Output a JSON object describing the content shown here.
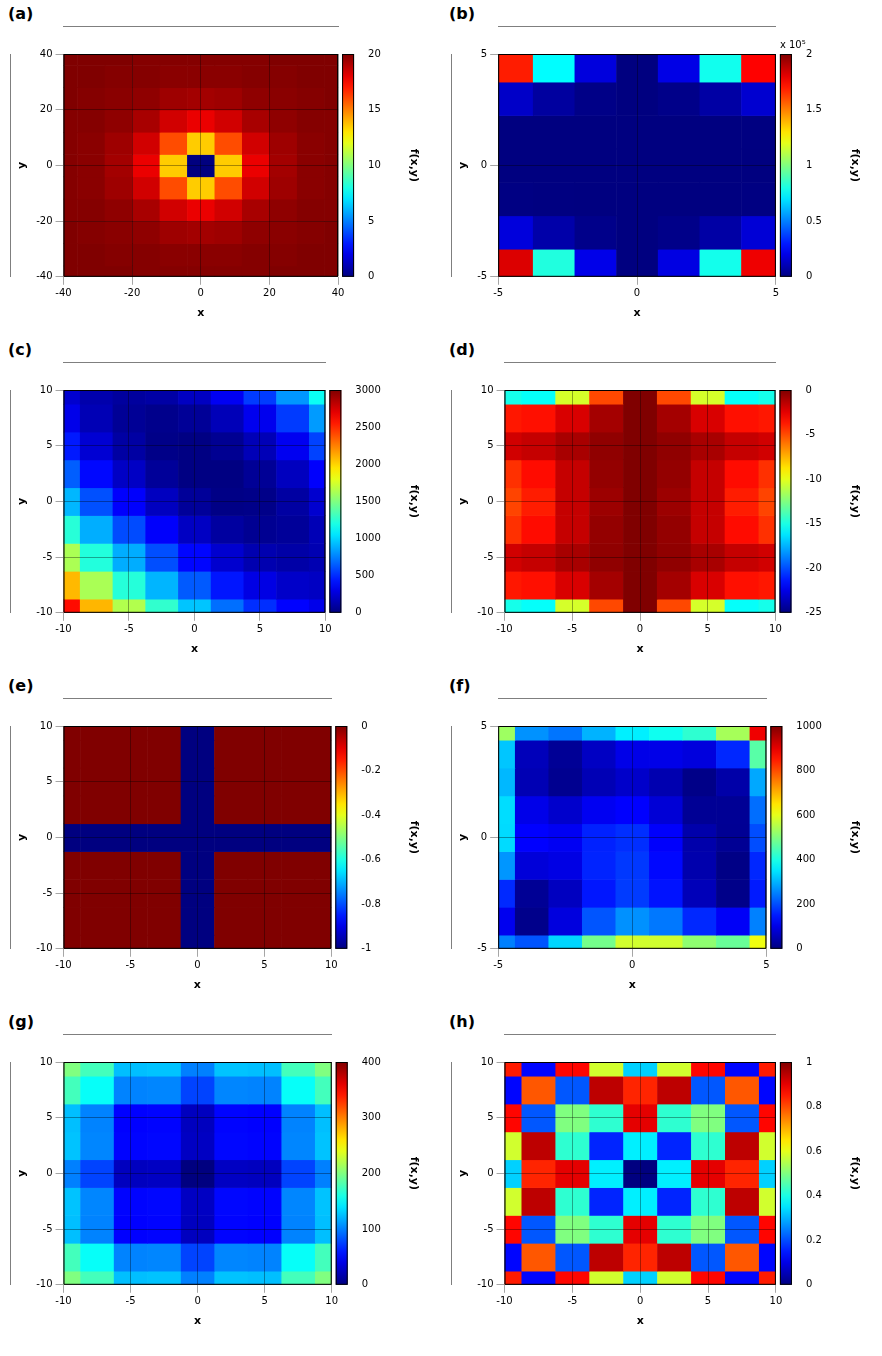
{
  "chart_data": [
    {
      "type": "heatmap",
      "title": "(a)",
      "x_label": "x",
      "y_label": "y",
      "grid": true,
      "xlim": [
        -40,
        40
      ],
      "xticks": [
        -40,
        -20,
        0,
        20,
        40
      ],
      "ylim": [
        -40,
        40
      ],
      "yticks": [
        -40,
        -20,
        0,
        20,
        40
      ],
      "x": [
        -40,
        -32,
        -24,
        -16,
        -8,
        0,
        8,
        16,
        24,
        32,
        40
      ],
      "y": [
        -40,
        -32,
        -24,
        -16,
        -8,
        0,
        8,
        16,
        24,
        32,
        40
      ],
      "cells": [
        [
          20,
          20,
          20,
          19.9,
          19.9,
          19.9,
          19.9,
          19.9,
          20,
          20,
          20
        ],
        [
          20,
          20,
          19.9,
          19.9,
          19.8,
          19.8,
          19.8,
          19.9,
          19.9,
          20,
          20
        ],
        [
          20,
          19.9,
          19.8,
          19.7,
          19.4,
          19.3,
          19.4,
          19.7,
          19.8,
          19.9,
          20
        ],
        [
          19.9,
          19.9,
          19.7,
          19.2,
          18.4,
          17.9,
          18.4,
          19.2,
          19.7,
          19.9,
          19.9
        ],
        [
          19.9,
          19.8,
          19.4,
          18.4,
          16,
          13.5,
          16,
          18.4,
          19.4,
          19.8,
          19.9
        ],
        [
          19.9,
          19.8,
          19.3,
          17.9,
          13.5,
          0,
          13.5,
          17.9,
          19.3,
          19.8,
          19.9
        ],
        [
          19.9,
          19.8,
          19.4,
          18.4,
          16,
          13.5,
          16,
          18.4,
          19.4,
          19.8,
          19.9
        ],
        [
          19.9,
          19.9,
          19.7,
          19.2,
          18.4,
          17.9,
          18.4,
          19.2,
          19.7,
          19.9,
          19.9
        ],
        [
          20,
          19.9,
          19.8,
          19.7,
          19.4,
          19.3,
          19.4,
          19.7,
          19.8,
          19.9,
          20
        ],
        [
          20,
          20,
          19.9,
          19.9,
          19.8,
          19.8,
          19.8,
          19.9,
          19.9,
          20,
          20
        ],
        [
          20,
          20,
          20,
          19.9,
          19.9,
          19.9,
          19.9,
          19.9,
          20,
          20,
          20
        ]
      ],
      "colorbar": {
        "label": "f(x,y)",
        "lim": [
          0,
          20
        ],
        "ticks": [
          0,
          5,
          10,
          15,
          20
        ]
      }
    },
    {
      "type": "heatmap",
      "title": "(b)",
      "x_label": "x",
      "y_label": "y",
      "grid": true,
      "xlim": [
        -5,
        5
      ],
      "xticks": [
        -5,
        0,
        5
      ],
      "ylim": [
        -5,
        5
      ],
      "yticks": [
        -5,
        0,
        5
      ],
      "x": [
        -4.5,
        -3,
        -1.5,
        0,
        1.5,
        3,
        4.5
      ],
      "y": [
        -4.5,
        -3,
        -1.5,
        0,
        1.5,
        3,
        4.5
      ],
      "cells": [
        [
          181900,
          81240,
          20630,
          14,
          19390,
          78800,
          178100
        ],
        [
          18060,
          8160,
          2140,
          14,
          1770,
          7420,
          16960
        ],
        [
          671,
          331,
          112,
          14,
          38,
          182,
          448
        ],
        [
          132,
          79,
          40,
          14,
          1.8,
          3,
          17.6
        ],
        [
          77,
          22,
          1.6,
          14,
          60,
          140,
          254
        ],
        [
          14280,
          6170,
          1420,
          14,
          1955,
          7250,
          15880
        ],
        [
          169600,
          74850,
          18300,
          14,
          20000,
          78280,
          174800
        ]
      ],
      "colorbar": {
        "label": "f(x,y)",
        "lim": [
          0,
          200000
        ],
        "multiplier": "x 10⁵",
        "ticks": [
          0,
          {
            "value": 50000,
            "label": "0.5"
          },
          {
            "value": 100000,
            "label": "1"
          },
          {
            "value": 150000,
            "label": "1.5"
          },
          {
            "value": 200000,
            "label": "2"
          }
        ]
      }
    },
    {
      "type": "heatmap",
      "title": "(c)",
      "x_label": "x",
      "y_label": "y",
      "grid": true,
      "xlim": [
        -10,
        10
      ],
      "xticks": [
        -10,
        -5,
        0,
        5,
        10
      ],
      "ylim": [
        -10,
        10
      ],
      "yticks": [
        -10,
        -5,
        0,
        5,
        10
      ],
      "x": [
        -10,
        -7.5,
        -5,
        -2.5,
        0,
        2.5,
        5,
        7.5,
        10
      ],
      "y": [
        -10,
        -7.5,
        -5,
        -2.5,
        0,
        2.5,
        5,
        7.5,
        10
      ],
      "cells": [
        [
          2594,
          2090,
          1649,
          1270,
          954,
          700,
          509,
          380,
          314
        ],
        [
          2080,
          1626,
          1235,
          906,
          640,
          436,
          295,
          216,
          200
        ],
        [
          1629,
          1225,
          884,
          605,
          389,
          235,
          144,
          115,
          149
        ],
        [
          1240,
          886,
          595,
          366,
          200,
          96,
          55,
          76,
          160
        ],
        [
          914,
          610,
          369,
          190,
          74,
          20,
          29,
          100,
          234
        ],
        [
          650,
          396,
          205,
          76,
          10,
          6,
          65,
          186,
          370
        ],
        [
          449,
          245,
          104,
          25,
          9,
          55,
          164,
          335,
          569
        ],
        [
          310,
          156,
          65,
          36,
          70,
          166,
          325,
          546,
          830
        ],
        [
          234,
          130,
          89,
          110,
          194,
          340,
          549,
          820,
          1154
        ]
      ],
      "colorbar": {
        "label": "f(x,y)",
        "lim": [
          0,
          3000
        ],
        "ticks": [
          0,
          500,
          1000,
          1500,
          2000,
          2500,
          3000
        ]
      }
    },
    {
      "type": "heatmap",
      "title": "(d)",
      "x_label": "x",
      "y_label": "y",
      "grid": true,
      "xlim": [
        -10,
        10
      ],
      "xticks": [
        -10,
        -5,
        0,
        5,
        10
      ],
      "ylim": [
        -10,
        10
      ],
      "yticks": [
        -10,
        -5,
        0,
        5,
        10
      ],
      "x": [
        -10,
        -7.5,
        -5,
        -2.5,
        0,
        2.5,
        5,
        7.5,
        10
      ],
      "y": [
        -10,
        -7.5,
        -5,
        -2.5,
        0,
        2.5,
        5,
        7.5,
        10
      ],
      "cells": [
        [
          -15.1,
          -15.5,
          -10.4,
          -4.9,
          0,
          -4.9,
          -10.4,
          -15.5,
          -15.1
        ],
        [
          -3.7,
          -3.5,
          -2.2,
          -0.9,
          0,
          -0.9,
          -2.2,
          -3.5,
          -3.7
        ],
        [
          -2,
          -1.7,
          -1,
          -0.4,
          0,
          -0.4,
          -1,
          -1.7,
          -2
        ],
        [
          -4.3,
          -3.4,
          -1.7,
          -0.5,
          0,
          -0.5,
          -1.7,
          -3.4,
          -4.3
        ],
        [
          -4.8,
          -3.8,
          -1.7,
          -0.7,
          0,
          -0.7,
          -1.7,
          -3.8,
          -4.8
        ],
        [
          -4.3,
          -3.4,
          -1.7,
          -0.5,
          0,
          -0.5,
          -1.7,
          -3.4,
          -4.3
        ],
        [
          -2,
          -1.7,
          -1,
          -0.4,
          0,
          -0.4,
          -1,
          -1.7,
          -2
        ],
        [
          -3.7,
          -3.5,
          -2.2,
          -0.9,
          0,
          -0.9,
          -2.2,
          -3.5,
          -3.7
        ],
        [
          -15.1,
          -15.5,
          -10.4,
          -4.9,
          0,
          -4.9,
          -10.4,
          -15.5,
          -15.1
        ]
      ],
      "colorbar": {
        "label": "f(x,y)",
        "lim": [
          -25,
          0
        ],
        "ticks": [
          -25,
          -20,
          -15,
          -10,
          -5,
          0
        ]
      }
    },
    {
      "type": "heatmap",
      "title": "(e)",
      "x_label": "x",
      "y_label": "y",
      "grid": true,
      "xlim": [
        -10,
        10
      ],
      "xticks": [
        -10,
        -5,
        0,
        5,
        10
      ],
      "ylim": [
        -10,
        10
      ],
      "yticks": [
        -10,
        -5,
        0,
        5,
        10
      ],
      "x": [
        -10,
        -7.5,
        -5,
        -2.5,
        0,
        2.5,
        5,
        7.5,
        10
      ],
      "y": [
        -10,
        -7.5,
        -5,
        -2.5,
        0,
        2.5,
        5,
        7.5,
        10
      ],
      "cells": [
        [
          0,
          0,
          0,
          0,
          -1,
          0,
          0,
          0,
          0
        ],
        [
          0,
          0,
          0,
          0,
          -1,
          0,
          0,
          0,
          0
        ],
        [
          0,
          0,
          0,
          0,
          -1,
          0,
          0,
          0,
          0
        ],
        [
          0,
          0,
          0,
          0,
          -1,
          0,
          0,
          0,
          0
        ],
        [
          -1,
          -1,
          -1,
          -1,
          -1,
          -1,
          -1,
          -1,
          -1
        ],
        [
          0,
          0,
          0,
          0,
          -1,
          0,
          0,
          0,
          0
        ],
        [
          0,
          0,
          0,
          0,
          -1,
          0,
          0,
          0,
          0
        ],
        [
          0,
          0,
          0,
          0,
          -1,
          0,
          0,
          0,
          0
        ],
        [
          0,
          0,
          0,
          0,
          -1,
          0,
          0,
          0,
          0
        ]
      ],
      "colorbar": {
        "label": "f(x,y)",
        "lim": [
          -1,
          0
        ],
        "ticks": [
          -1,
          -0.8,
          -0.6,
          -0.4,
          -0.2,
          0
        ]
      }
    },
    {
      "type": "heatmap",
      "title": "(f)",
      "x_label": "x",
      "y_label": "y",
      "grid": true,
      "xlim": [
        -5,
        5
      ],
      "xticks": [
        -5,
        0,
        5
      ],
      "ylim": [
        -5,
        5
      ],
      "yticks": [
        -5,
        0,
        5
      ],
      "x": [
        -5,
        -3.75,
        -2.5,
        -1.25,
        0,
        1.25,
        2.5,
        3.75,
        5
      ],
      "y": [
        -5,
        -3.75,
        -2.5,
        -1.25,
        0,
        1.25,
        2.5,
        3.75,
        5
      ],
      "cells": [
        [
          250,
          207,
          335,
          489,
          580,
          579,
          515,
          477,
          610
        ],
        [
          109,
          11.5,
          93,
          208,
          267,
          243,
          164,
          117,
          251
        ],
        [
          165,
          20.6,
          63,
          147,
          183,
          143,
          56,
          9.3,
          150
        ],
        [
          272,
          88,
          99,
          159,
          180,
          132,
          45,
          6,
          163
        ],
        [
          340,
          125,
          113,
          157,
          170,
          122,
          43,
          20,
          200
        ],
        [
          342,
          103,
          75,
          112,
          125,
          85,
          21,
          21.5,
          233
        ],
        [
          305,
          51,
          16,
          52,
          73,
          48,
          8,
          40,
          290
        ],
        [
          319,
          57,
          22,
          66,
          102,
          102,
          92,
          163,
          461
        ],
        [
          530,
          268,
          240,
          300,
          360,
          390,
          420,
          538,
          890
        ]
      ],
      "colorbar": {
        "label": "f(x,y)",
        "lim": [
          0,
          1000
        ],
        "ticks": [
          0,
          200,
          400,
          600,
          800,
          1000
        ]
      }
    },
    {
      "type": "heatmap",
      "title": "(g)",
      "x_label": "x",
      "y_label": "y",
      "grid": true,
      "xlim": [
        -10,
        10
      ],
      "xticks": [
        -10,
        -5,
        0,
        5,
        10
      ],
      "ylim": [
        -10,
        10
      ],
      "yticks": [
        -10,
        -5,
        0,
        5,
        10
      ],
      "x": [
        -10,
        -7.5,
        -5,
        -2.5,
        0,
        2.5,
        5,
        7.5,
        10
      ],
      "y": [
        -10,
        -7.5,
        -5,
        -2.5,
        0,
        2.5,
        5,
        7.5,
        10
      ],
      "cells": [
        [
          200,
          176.3,
          125,
          126.3,
          100,
          126.3,
          125,
          176.3,
          200
        ],
        [
          176.3,
          152.5,
          101.3,
          102.5,
          76.3,
          102.5,
          101.3,
          152.5,
          176.3
        ],
        [
          125,
          101.3,
          50,
          51.3,
          25,
          51.3,
          50,
          101.3,
          125
        ],
        [
          126.3,
          102.5,
          51.3,
          52.5,
          26.3,
          52.5,
          51.3,
          102.5,
          126.3
        ],
        [
          100,
          76.3,
          25,
          26.3,
          0,
          26.3,
          25,
          76.3,
          100
        ],
        [
          126.3,
          102.5,
          51.3,
          52.5,
          26.3,
          52.5,
          51.3,
          102.5,
          126.3
        ],
        [
          125,
          101.3,
          50,
          51.3,
          25,
          51.3,
          50,
          101.3,
          125
        ],
        [
          176.3,
          152.5,
          101.3,
          102.5,
          76.3,
          102.5,
          101.3,
          152.5,
          176.3
        ],
        [
          200,
          176.3,
          125,
          126.3,
          100,
          126.3,
          125,
          176.3,
          200
        ]
      ],
      "colorbar": {
        "label": "f(x,y)",
        "lim": [
          0,
          400
        ],
        "ticks": [
          0,
          100,
          200,
          300,
          400
        ]
      }
    },
    {
      "type": "heatmap",
      "title": "(h)",
      "x_label": "x",
      "y_label": "y",
      "grid": true,
      "xlim": [
        -10,
        10
      ],
      "xticks": [
        -10,
        -5,
        0,
        5,
        10
      ],
      "ylim": [
        -10,
        10
      ],
      "yticks": [
        -10,
        -5,
        0,
        5,
        10
      ],
      "x": [
        -10,
        -7.5,
        -5,
        -2.5,
        0,
        2.5,
        5,
        7.5,
        10
      ],
      "y": [
        -10,
        -7.5,
        -5,
        -2.5,
        0,
        2.5,
        5,
        7.5,
        10
      ],
      "cells": [
        [
          0.85,
          0.13,
          0.87,
          0.58,
          0.33,
          0.58,
          0.87,
          0.13,
          0.85
        ],
        [
          0.13,
          0.79,
          0.21,
          0.94,
          0.84,
          0.94,
          0.21,
          0.79,
          0.13
        ],
        [
          0.87,
          0.21,
          0.5,
          0.42,
          0.9,
          0.42,
          0.5,
          0.21,
          0.87
        ],
        [
          0.58,
          0.94,
          0.42,
          0.16,
          0.36,
          0.16,
          0.42,
          0.94,
          0.58
        ],
        [
          0.33,
          0.84,
          0.9,
          0.36,
          0,
          0.36,
          0.9,
          0.84,
          0.33
        ],
        [
          0.58,
          0.94,
          0.42,
          0.16,
          0.36,
          0.16,
          0.42,
          0.94,
          0.58
        ],
        [
          0.87,
          0.21,
          0.5,
          0.42,
          0.9,
          0.42,
          0.5,
          0.21,
          0.87
        ],
        [
          0.13,
          0.79,
          0.21,
          0.94,
          0.84,
          0.94,
          0.21,
          0.79,
          0.13
        ],
        [
          0.85,
          0.13,
          0.87,
          0.58,
          0.33,
          0.58,
          0.87,
          0.13,
          0.85
        ]
      ],
      "colorbar": {
        "label": "f(x,y)",
        "lim": [
          0,
          1
        ],
        "ticks": [
          0,
          0.2,
          0.4,
          0.6,
          0.8,
          1
        ]
      }
    }
  ]
}
